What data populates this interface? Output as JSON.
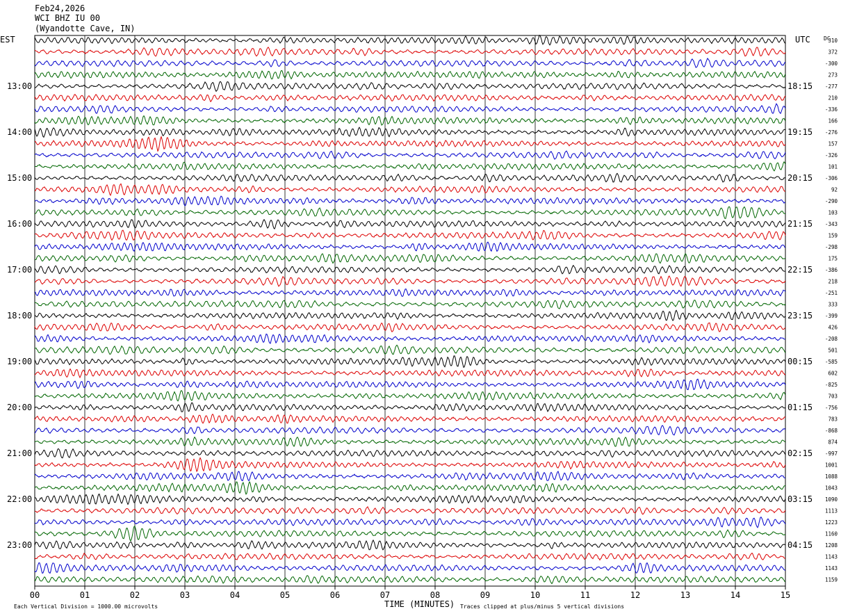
{
  "header": {
    "date": "Feb24,2026",
    "station": "WCI BHZ IU 00",
    "location": "(Wyandotte Cave, IN)",
    "left_tz": "EST",
    "right_tz": "UTC",
    "dc_label": "DC"
  },
  "footer": {
    "x_axis_title": "TIME (MINUTES)",
    "scale_note": "Each Vertical Division = 1000.00 microvolts",
    "clip_note": "Traces clipped at plus/minus 5 vertical divisions"
  },
  "chart_data": {
    "type": "line",
    "xlabel": "TIME (MINUTES)",
    "xlim": [
      0,
      15
    ],
    "x_ticks": [
      "00",
      "01",
      "02",
      "03",
      "04",
      "05",
      "06",
      "07",
      "08",
      "09",
      "10",
      "11",
      "12",
      "13",
      "14",
      "15"
    ],
    "left_hour_labels": [
      "13:00",
      "14:00",
      "15:00",
      "16:00",
      "17:00",
      "18:00",
      "19:00",
      "20:00",
      "21:00",
      "22:00",
      "23:00"
    ],
    "right_hour_labels": [
      "18:15",
      "19:15",
      "20:15",
      "21:15",
      "22:15",
      "23:15",
      "00:15",
      "01:15",
      "02:15",
      "03:15",
      "04:15"
    ],
    "trace_colors": [
      "#000000",
      "#dd0000",
      "#0000cc",
      "#006600"
    ],
    "dc_offsets": [
      "310",
      "372",
      "-300",
      "273",
      "-277",
      "210",
      "-336",
      "166",
      "-276",
      "157",
      "-326",
      "101",
      "-306",
      "92",
      "-290",
      "103",
      "-343",
      "159",
      "-298",
      "175",
      "-386",
      "218",
      "-251",
      "333",
      "-399",
      "426",
      "-208",
      "501",
      "-585",
      "602",
      "-825",
      "703",
      "-756",
      "783",
      "-868",
      "874",
      "-997",
      "1001",
      "1088",
      "1043",
      "1090",
      "1113",
      "1223",
      "1160",
      "1208",
      "1143",
      "1143",
      "1159"
    ],
    "trace_count": 48,
    "grid": true
  }
}
